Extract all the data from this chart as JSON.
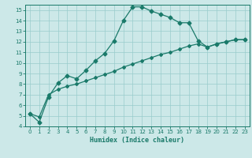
{
  "xlabel": "Humidex (Indice chaleur)",
  "bg_color": "#cce8e8",
  "grid_color": "#99cccc",
  "line_color": "#1a7a6a",
  "line1_x": [
    0,
    1,
    2,
    3,
    4,
    5,
    6,
    7,
    8,
    9,
    10,
    11,
    12,
    13,
    14,
    15,
    16,
    17,
    18,
    19,
    20,
    21,
    22,
    23
  ],
  "line1_y": [
    5.2,
    4.4,
    6.8,
    8.1,
    8.8,
    8.5,
    9.3,
    10.2,
    10.9,
    12.1,
    14.0,
    15.3,
    15.3,
    14.9,
    14.6,
    14.3,
    13.8,
    13.8,
    12.1,
    11.5,
    11.8,
    12.0,
    12.2,
    12.2
  ],
  "line2_x": [
    0,
    1,
    2,
    3,
    4,
    5,
    6,
    7,
    8,
    9,
    10,
    11,
    12,
    13,
    14,
    15,
    16,
    17,
    18,
    19,
    20,
    21,
    22,
    23
  ],
  "line2_y": [
    5.2,
    4.9,
    7.0,
    7.5,
    7.8,
    8.0,
    8.3,
    8.6,
    8.9,
    9.2,
    9.6,
    9.9,
    10.2,
    10.5,
    10.8,
    11.0,
    11.3,
    11.6,
    11.8,
    11.5,
    11.8,
    12.0,
    12.2,
    12.2
  ],
  "xlim": [
    -0.5,
    23.5
  ],
  "ylim": [
    4,
    15.5
  ],
  "yticks": [
    4,
    5,
    6,
    7,
    8,
    9,
    10,
    11,
    12,
    13,
    14,
    15
  ],
  "xticks": [
    0,
    1,
    2,
    3,
    4,
    5,
    6,
    7,
    8,
    9,
    10,
    11,
    12,
    13,
    14,
    15,
    16,
    17,
    18,
    19,
    20,
    21,
    22,
    23
  ]
}
